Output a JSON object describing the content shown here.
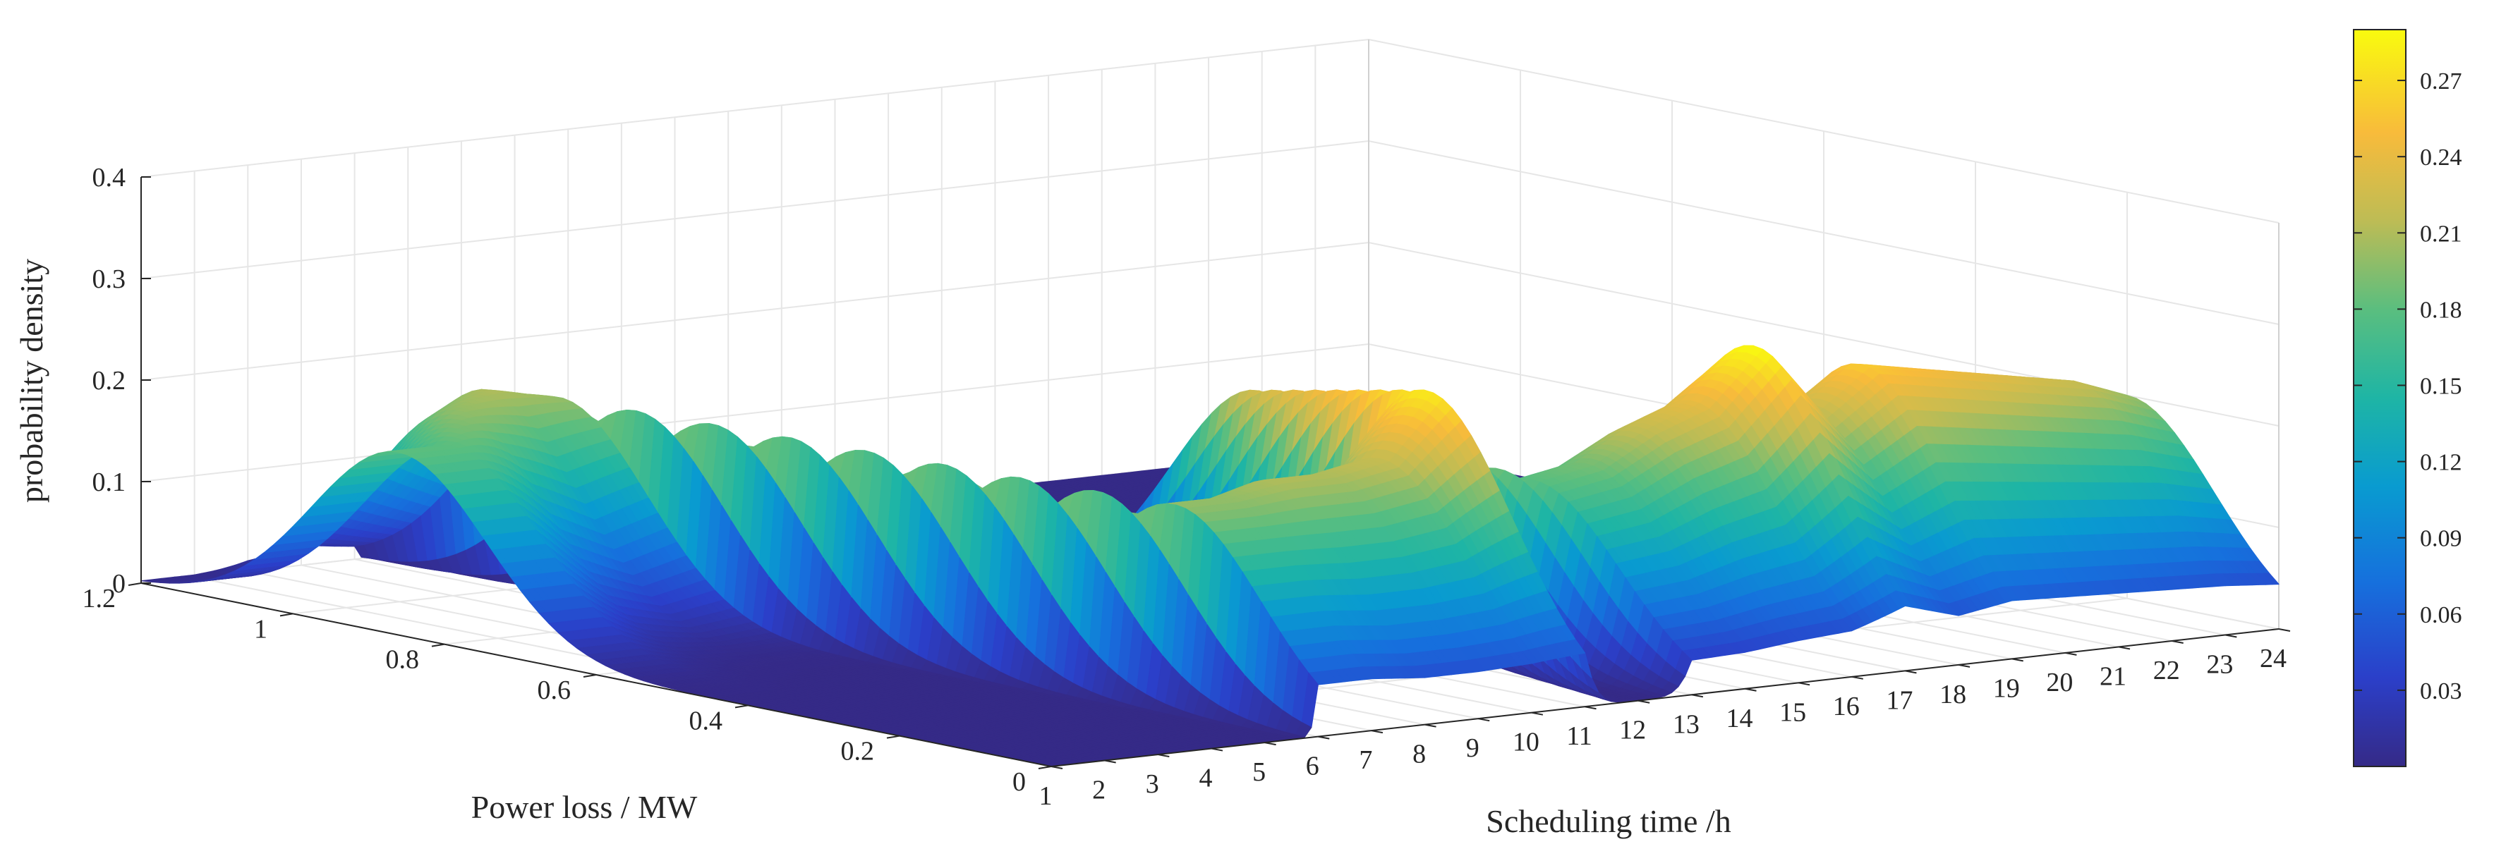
{
  "chart_data": {
    "type": "surface",
    "x_axis": {
      "label": "Scheduling time /h",
      "ticks": [
        1,
        2,
        3,
        4,
        5,
        6,
        7,
        8,
        9,
        10,
        11,
        12,
        13,
        14,
        15,
        16,
        17,
        18,
        19,
        20,
        21,
        22,
        23,
        24
      ],
      "range": [
        1,
        24
      ]
    },
    "y_axis": {
      "label": "Power loss / MW",
      "ticks": [
        0,
        0.2,
        0.4,
        0.6,
        0.8,
        1,
        1.2
      ],
      "tick_labels": [
        "0",
        "0.2",
        "0.4",
        "0.6",
        "0.8",
        "1",
        "1.2"
      ],
      "range": [
        0,
        1.2
      ]
    },
    "z_axis": {
      "label": "probability density",
      "ticks": [
        0,
        0.1,
        0.2,
        0.3,
        0.4
      ],
      "tick_labels": [
        "0",
        "0.1",
        "0.2",
        "0.3",
        "0.4"
      ],
      "range": [
        0,
        0.4
      ]
    },
    "colorbar": {
      "range": [
        0,
        0.29
      ],
      "ticks": [
        0.03,
        0.06,
        0.09,
        0.12,
        0.15,
        0.18,
        0.21,
        0.24,
        0.27
      ],
      "tick_labels": [
        "0.03",
        "0.06",
        "0.09",
        "0.12",
        "0.15",
        "0.18",
        "0.21",
        "0.24",
        "0.27"
      ],
      "colormap": "parula"
    },
    "grid": true,
    "series": [
      {
        "x": 1,
        "mean": 0.86,
        "peak": 0.18
      },
      {
        "x": 2,
        "mean": 0.86,
        "peak": 0.18
      },
      {
        "x": 3,
        "mean": 0.92,
        "peak": 0.2
      },
      {
        "x": 4,
        "mean": 0.95,
        "peak": 0.21
      },
      {
        "x": 5,
        "mean": 0.93,
        "peak": 0.2
      },
      {
        "x": 6,
        "mean": 0.19,
        "peak": 0.2
      },
      {
        "x": 7,
        "mean": 0.19,
        "peak": 0.2
      },
      {
        "x": 8,
        "mean": 0.2,
        "peak": 0.21
      },
      {
        "x": 9,
        "mean": 0.2,
        "peak": 0.21
      },
      {
        "x": 10,
        "mean": 0.2,
        "peak": 0.22
      },
      {
        "x": 11,
        "mean": 0.21,
        "peak": 0.28
      },
      {
        "x": 12,
        "mean": 0.5,
        "peak": 0.23
      },
      {
        "x": 13,
        "mean": 0.21,
        "peak": 0.18
      },
      {
        "x": 14,
        "mean": 0.21,
        "peak": 0.19
      },
      {
        "x": 15,
        "mean": 0.21,
        "peak": 0.22
      },
      {
        "x": 16,
        "mean": 0.21,
        "peak": 0.24
      },
      {
        "x": 17,
        "mean": 0.2,
        "peak": 0.29
      },
      {
        "x": 18,
        "mean": 0.2,
        "peak": 0.22
      },
      {
        "x": 19,
        "mean": 0.2,
        "peak": 0.26
      },
      {
        "x": 20,
        "mean": 0.2,
        "peak": 0.25
      },
      {
        "x": 21,
        "mean": 0.2,
        "peak": 0.24
      },
      {
        "x": 22,
        "mean": 0.2,
        "peak": 0.23
      },
      {
        "x": 23,
        "mean": 0.2,
        "peak": 0.22
      },
      {
        "x": 24,
        "mean": 0.2,
        "peak": 0.2
      }
    ]
  }
}
